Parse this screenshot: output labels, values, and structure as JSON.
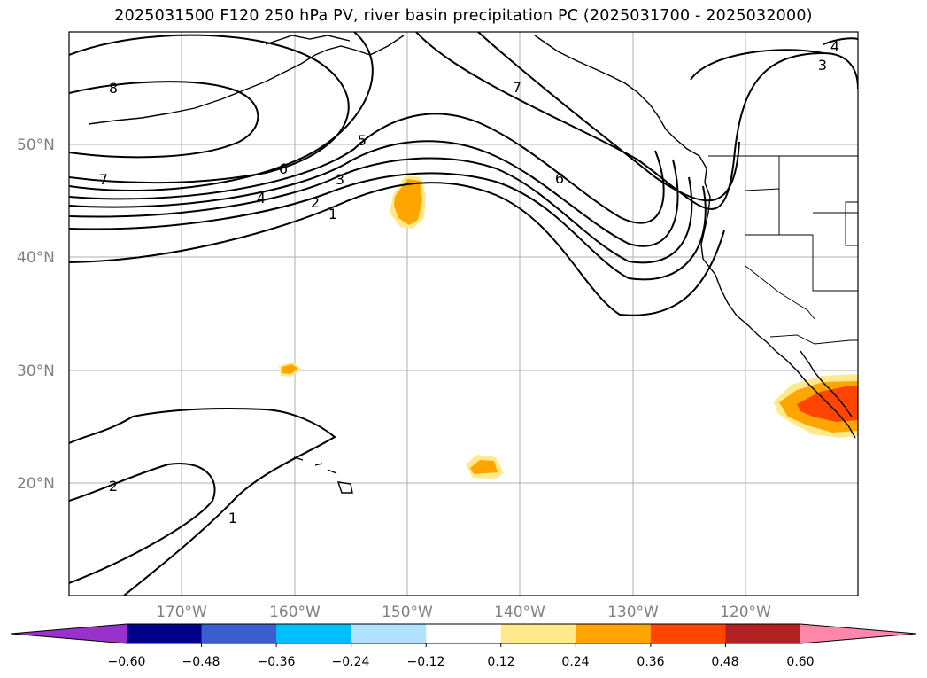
{
  "title": "2025031500 F120 250 hPa PV, river basin precipitation PC (2025031700 - 2025032000)",
  "map": {
    "lat_labels": [
      "50°N",
      "40°N",
      "30°N",
      "20°N"
    ],
    "lon_labels": [
      "170°W",
      "160°W",
      "150°W",
      "140°W",
      "130°W",
      "120°W"
    ],
    "contour_labels": [
      "8",
      "7",
      "6",
      "5",
      "4",
      "3",
      "2",
      "1",
      "7",
      "6",
      "4",
      "3",
      "2",
      "1"
    ],
    "pv_contour_levels": [
      1,
      2,
      3,
      4,
      5,
      6,
      7,
      8
    ],
    "precip_colors": {
      "low": "#ffe98a",
      "mid": "#ffa500",
      "high": "#ff4500"
    }
  },
  "colorbar": {
    "tick_labels": [
      "−0.60",
      "−0.48",
      "−0.36",
      "−0.24",
      "−0.12",
      "0.12",
      "0.24",
      "0.36",
      "0.48",
      "0.60"
    ],
    "segment_colors": [
      "#9932cc",
      "#00008b",
      "#3a5fcd",
      "#00bfff",
      "#b0e2ff",
      "#ffffff",
      "#ffe98a",
      "#ffa500",
      "#ff4500",
      "#b22222",
      "#ff88aa"
    ],
    "extend": "both"
  }
}
